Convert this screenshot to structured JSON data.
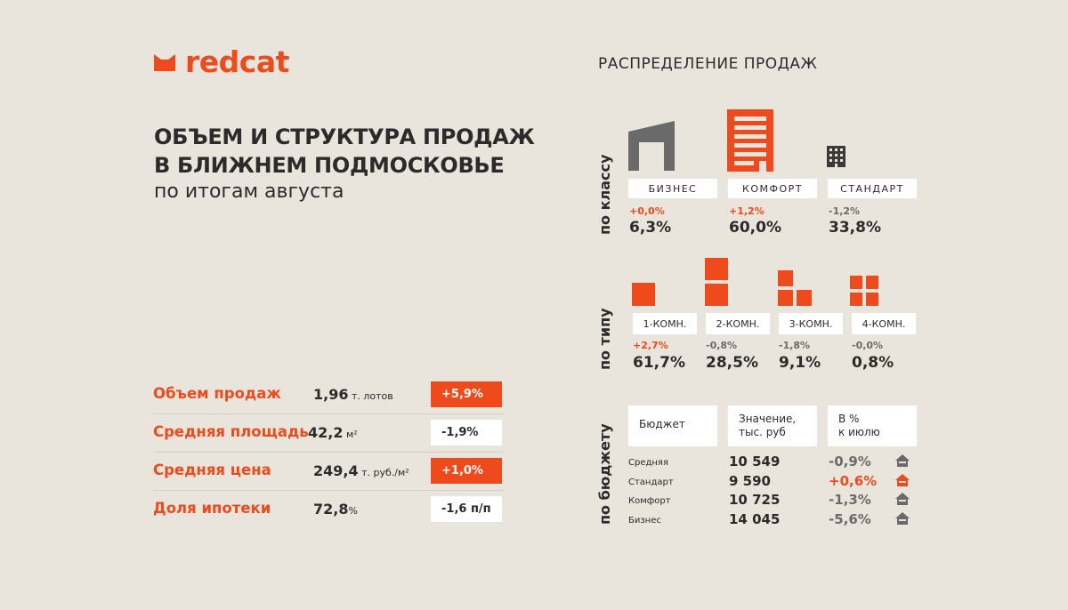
{
  "brand": {
    "name": "redcat",
    "accent": "#EE4A1C",
    "background": "#EAE5DC"
  },
  "title": {
    "line1": "ОБЪЕМ И СТРУКТУРА ПРОДАЖ",
    "line2": "В БЛИЖНЕМ ПОДМОСКОВЬЕ",
    "subtitle": "по итогам августа"
  },
  "metrics": [
    {
      "label": "Объем продаж",
      "value": "1,96",
      "unit": " т. лотов",
      "change": "+5,9%",
      "positive": true
    },
    {
      "label": "Средняя площадь",
      "value": "42,2",
      "unit": " м²",
      "change": "-1,9%",
      "positive": false
    },
    {
      "label": "Средняя цена",
      "value": "249,4",
      "unit": " т. руб./м²",
      "change": "+1,0%",
      "positive": true
    },
    {
      "label": "Доля ипотеки",
      "value": "72,8",
      "unit": "%",
      "change": "-1,6 п/п",
      "positive": false
    }
  ],
  "distribution": {
    "title": "РАСПРЕДЕЛЕНИЕ ПРОДАЖ",
    "by_class": {
      "side_label": "по классу",
      "items": [
        {
          "label": "БИЗНЕС",
          "change": "+0,0%",
          "share": "6,3%",
          "icon": "business-building-icon"
        },
        {
          "label": "КОМФОРТ",
          "change": "+1,2%",
          "share": "60,0%",
          "icon": "comfort-building-icon"
        },
        {
          "label": "СТАНДАРТ",
          "change": "-1,2%",
          "share": "33,8%",
          "icon": "standard-building-icon"
        }
      ]
    },
    "by_type": {
      "side_label": "по типу",
      "items": [
        {
          "label": "1-КОМН.",
          "change": "+2,7%",
          "share": "61,7%",
          "icon": "one-room-icon"
        },
        {
          "label": "2-КОМН.",
          "change": "-0,8%",
          "share": "28,5%",
          "icon": "two-room-icon"
        },
        {
          "label": "3-КОМН.",
          "change": "-1,8%",
          "share": "9,1%",
          "icon": "three-room-icon"
        },
        {
          "label": "4-КОМН.",
          "change": "-0,0%",
          "share": "0,8%",
          "icon": "four-room-icon"
        }
      ]
    },
    "by_budget": {
      "side_label": "по бюджету",
      "headers": {
        "budget": "Бюджет",
        "value_line1": "Значение,",
        "value_line2": "тыс. руб",
        "change_line1": "В %",
        "change_line2": "к июлю"
      },
      "rows": [
        {
          "label": "Средняя",
          "value": "10 549",
          "change": "-0,9%",
          "positive": false
        },
        {
          "label": "Стандарт",
          "value": "9 590",
          "change": "+0,6%",
          "positive": true
        },
        {
          "label": "Комфорт",
          "value": "10 725",
          "change": "-1,3%",
          "positive": false
        },
        {
          "label": "Бизнес",
          "value": "14 045",
          "change": "-5,6%",
          "positive": false
        }
      ]
    }
  }
}
